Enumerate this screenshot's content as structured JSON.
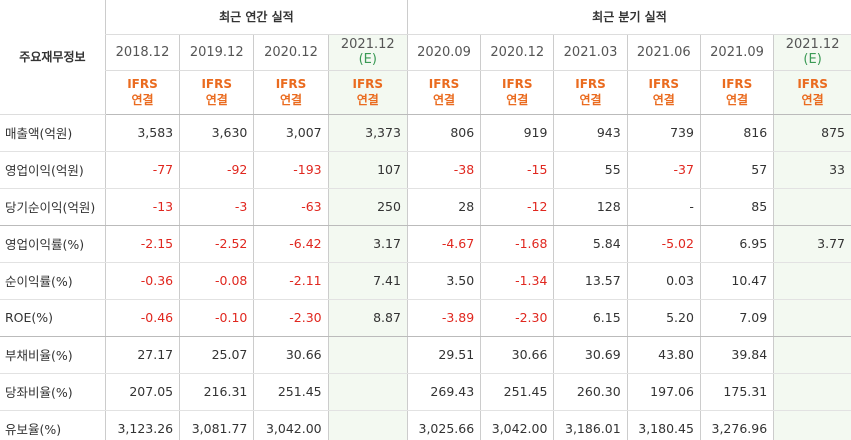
{
  "header": {
    "label_column": "주요재무정보",
    "annual_group": "최근 연간 실적",
    "quarter_group": "최근 분기 실적"
  },
  "columns": [
    {
      "period": "2018.12",
      "est": "",
      "basis_line1": "IFRS",
      "basis_line2": "연결",
      "estimate": false,
      "group": "annual"
    },
    {
      "period": "2019.12",
      "est": "",
      "basis_line1": "IFRS",
      "basis_line2": "연결",
      "estimate": false,
      "group": "annual"
    },
    {
      "period": "2020.12",
      "est": "",
      "basis_line1": "IFRS",
      "basis_line2": "연결",
      "estimate": false,
      "group": "annual"
    },
    {
      "period": "2021.12",
      "est": "(E)",
      "basis_line1": "IFRS",
      "basis_line2": "연결",
      "estimate": true,
      "group": "annual"
    },
    {
      "period": "2020.09",
      "est": "",
      "basis_line1": "IFRS",
      "basis_line2": "연결",
      "estimate": false,
      "group": "quarter"
    },
    {
      "period": "2020.12",
      "est": "",
      "basis_line1": "IFRS",
      "basis_line2": "연결",
      "estimate": false,
      "group": "quarter"
    },
    {
      "period": "2021.03",
      "est": "",
      "basis_line1": "IFRS",
      "basis_line2": "연결",
      "estimate": false,
      "group": "quarter"
    },
    {
      "period": "2021.06",
      "est": "",
      "basis_line1": "IFRS",
      "basis_line2": "연결",
      "estimate": false,
      "group": "quarter"
    },
    {
      "period": "2021.09",
      "est": "",
      "basis_line1": "IFRS",
      "basis_line2": "연결",
      "estimate": false,
      "group": "quarter"
    },
    {
      "period": "2021.12",
      "est": "(E)",
      "basis_line1": "IFRS",
      "basis_line2": "연결",
      "estimate": true,
      "group": "quarter"
    }
  ],
  "rows": [
    {
      "label": "매출액(억원)",
      "values": [
        "3,583",
        "3,630",
        "3,007",
        "3,373",
        "806",
        "919",
        "943",
        "739",
        "816",
        "875"
      ],
      "group_end": false
    },
    {
      "label": "영업이익(억원)",
      "values": [
        "-77",
        "-92",
        "-193",
        "107",
        "-38",
        "-15",
        "55",
        "-37",
        "57",
        "33"
      ],
      "group_end": false
    },
    {
      "label": "당기순이익(억원)",
      "values": [
        "-13",
        "-3",
        "-63",
        "250",
        "28",
        "-12",
        "128",
        "-",
        "85",
        ""
      ],
      "group_end": true
    },
    {
      "label": "영업이익률(%)",
      "values": [
        "-2.15",
        "-2.52",
        "-6.42",
        "3.17",
        "-4.67",
        "-1.68",
        "5.84",
        "-5.02",
        "6.95",
        "3.77"
      ],
      "group_end": false
    },
    {
      "label": "순이익률(%)",
      "values": [
        "-0.36",
        "-0.08",
        "-2.11",
        "7.41",
        "3.50",
        "-1.34",
        "13.57",
        "0.03",
        "10.47",
        ""
      ],
      "group_end": false
    },
    {
      "label": "ROE(%)",
      "values": [
        "-0.46",
        "-0.10",
        "-2.30",
        "8.87",
        "-3.89",
        "-2.30",
        "6.15",
        "5.20",
        "7.09",
        ""
      ],
      "group_end": true
    },
    {
      "label": "부채비율(%)",
      "values": [
        "27.17",
        "25.07",
        "30.66",
        "",
        "29.51",
        "30.66",
        "30.69",
        "43.80",
        "39.84",
        ""
      ],
      "group_end": false
    },
    {
      "label": "당좌비율(%)",
      "values": [
        "207.05",
        "216.31",
        "251.45",
        "",
        "269.43",
        "251.45",
        "260.30",
        "197.06",
        "175.31",
        ""
      ],
      "group_end": false
    },
    {
      "label": "유보율(%)",
      "values": [
        "3,123.26",
        "3,081.77",
        "3,042.00",
        "",
        "3,025.66",
        "3,042.00",
        "3,186.01",
        "3,180.45",
        "3,276.96",
        ""
      ],
      "group_end": false
    }
  ],
  "colors": {
    "negative": "#e0271f",
    "ifrs": "#ea6b1f",
    "estimate_bg": "#f3f9f1",
    "estimate_text": "#3a9a55"
  }
}
